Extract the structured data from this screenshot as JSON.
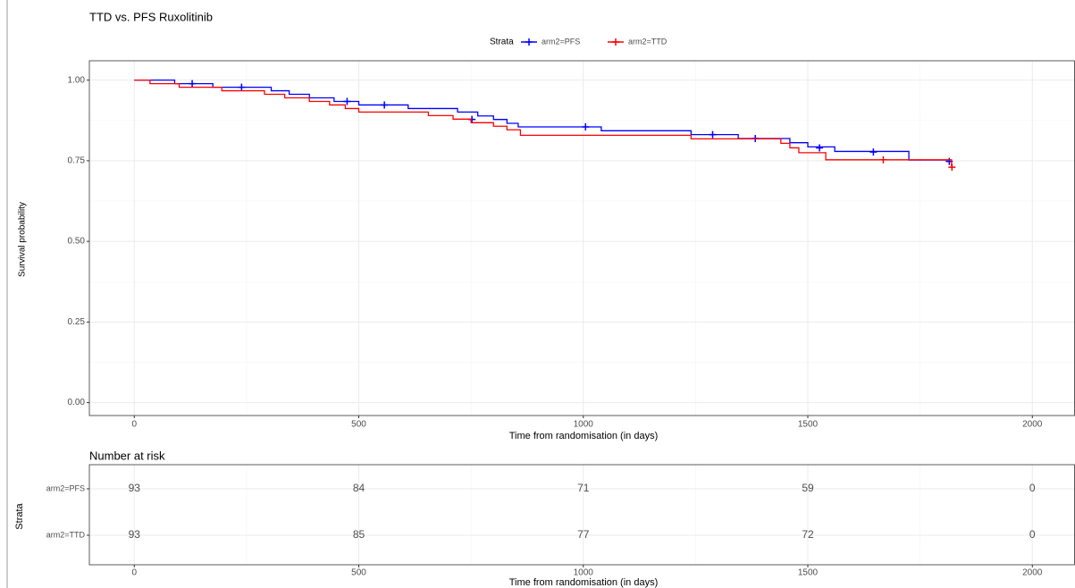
{
  "chart_data": [
    {
      "type": "step",
      "title": "TTD vs. PFS Ruxolitinib",
      "legend_title": "Strata",
      "legend": "top",
      "xlabel": "Time from randomisation (in days)",
      "ylabel": "Survival probability",
      "xlim": [
        -100,
        2095
      ],
      "ylim": [
        -0.04,
        1.06
      ],
      "xticks": [
        0,
        500,
        1000,
        1500,
        2000
      ],
      "yticks": [
        {
          "value": 0,
          "label": "0.00"
        },
        {
          "value": 0.25,
          "label": "0.25"
        },
        {
          "value": 0.5,
          "label": "0.50"
        },
        {
          "value": 0.75,
          "label": "0.75"
        },
        {
          "value": 1,
          "label": "1.00"
        }
      ],
      "grid": true,
      "series": [
        {
          "name": "arm2=PFS",
          "color": "#0000ff",
          "x": [
            0,
            90,
            175,
            305,
            345,
            390,
            445,
            500,
            610,
            720,
            765,
            800,
            830,
            855,
            1040,
            1240,
            1345,
            1460,
            1500,
            1560,
            1725
          ],
          "values": [
            1.0,
            0.989,
            0.978,
            0.967,
            0.956,
            0.945,
            0.934,
            0.923,
            0.912,
            0.901,
            0.889,
            0.878,
            0.866,
            0.855,
            0.843,
            0.831,
            0.819,
            0.806,
            0.793,
            0.779,
            0.752
          ],
          "censored": {
            "x": [
              129,
              239,
              474,
              557,
              752,
              1005,
              1288,
              1383,
              1526,
              1646,
              1815
            ],
            "values": [
              0.989,
              0.978,
              0.934,
              0.923,
              0.878,
              0.855,
              0.831,
              0.819,
              0.79,
              0.777,
              0.748
            ]
          }
        },
        {
          "name": "arm2=TTD",
          "color": "#ff0000",
          "x": [
            0,
            35,
            100,
            195,
            290,
            335,
            390,
            435,
            470,
            500,
            655,
            710,
            750,
            800,
            830,
            860,
            1240,
            1440,
            1460,
            1480,
            1540,
            1820
          ],
          "values": [
            1.0,
            0.989,
            0.978,
            0.967,
            0.956,
            0.945,
            0.934,
            0.923,
            0.912,
            0.901,
            0.89,
            0.879,
            0.868,
            0.857,
            0.846,
            0.829,
            0.818,
            0.804,
            0.79,
            0.775,
            0.753,
            0.735
          ],
          "censored": {
            "x": [
              1668,
              1821
            ],
            "values": [
              0.753,
              0.73
            ]
          }
        }
      ]
    },
    {
      "type": "risk-table",
      "title": "Number at risk",
      "ylabel": "Strata",
      "xlabel": "Time from randomisation (in days)",
      "xlim": [
        -100,
        2095
      ],
      "xticks": [
        0,
        500,
        1000,
        1500,
        2000
      ],
      "x": [
        0,
        500,
        1000,
        1500,
        2000
      ],
      "categories": [
        "arm2=PFS",
        "arm2=TTD"
      ],
      "series": [
        {
          "name": "arm2=PFS",
          "color": "#0000ff",
          "values": [
            93,
            84,
            71,
            59,
            0
          ]
        },
        {
          "name": "arm2=TTD",
          "color": "#ff0000",
          "values": [
            93,
            85,
            77,
            72,
            0
          ]
        }
      ]
    }
  ]
}
